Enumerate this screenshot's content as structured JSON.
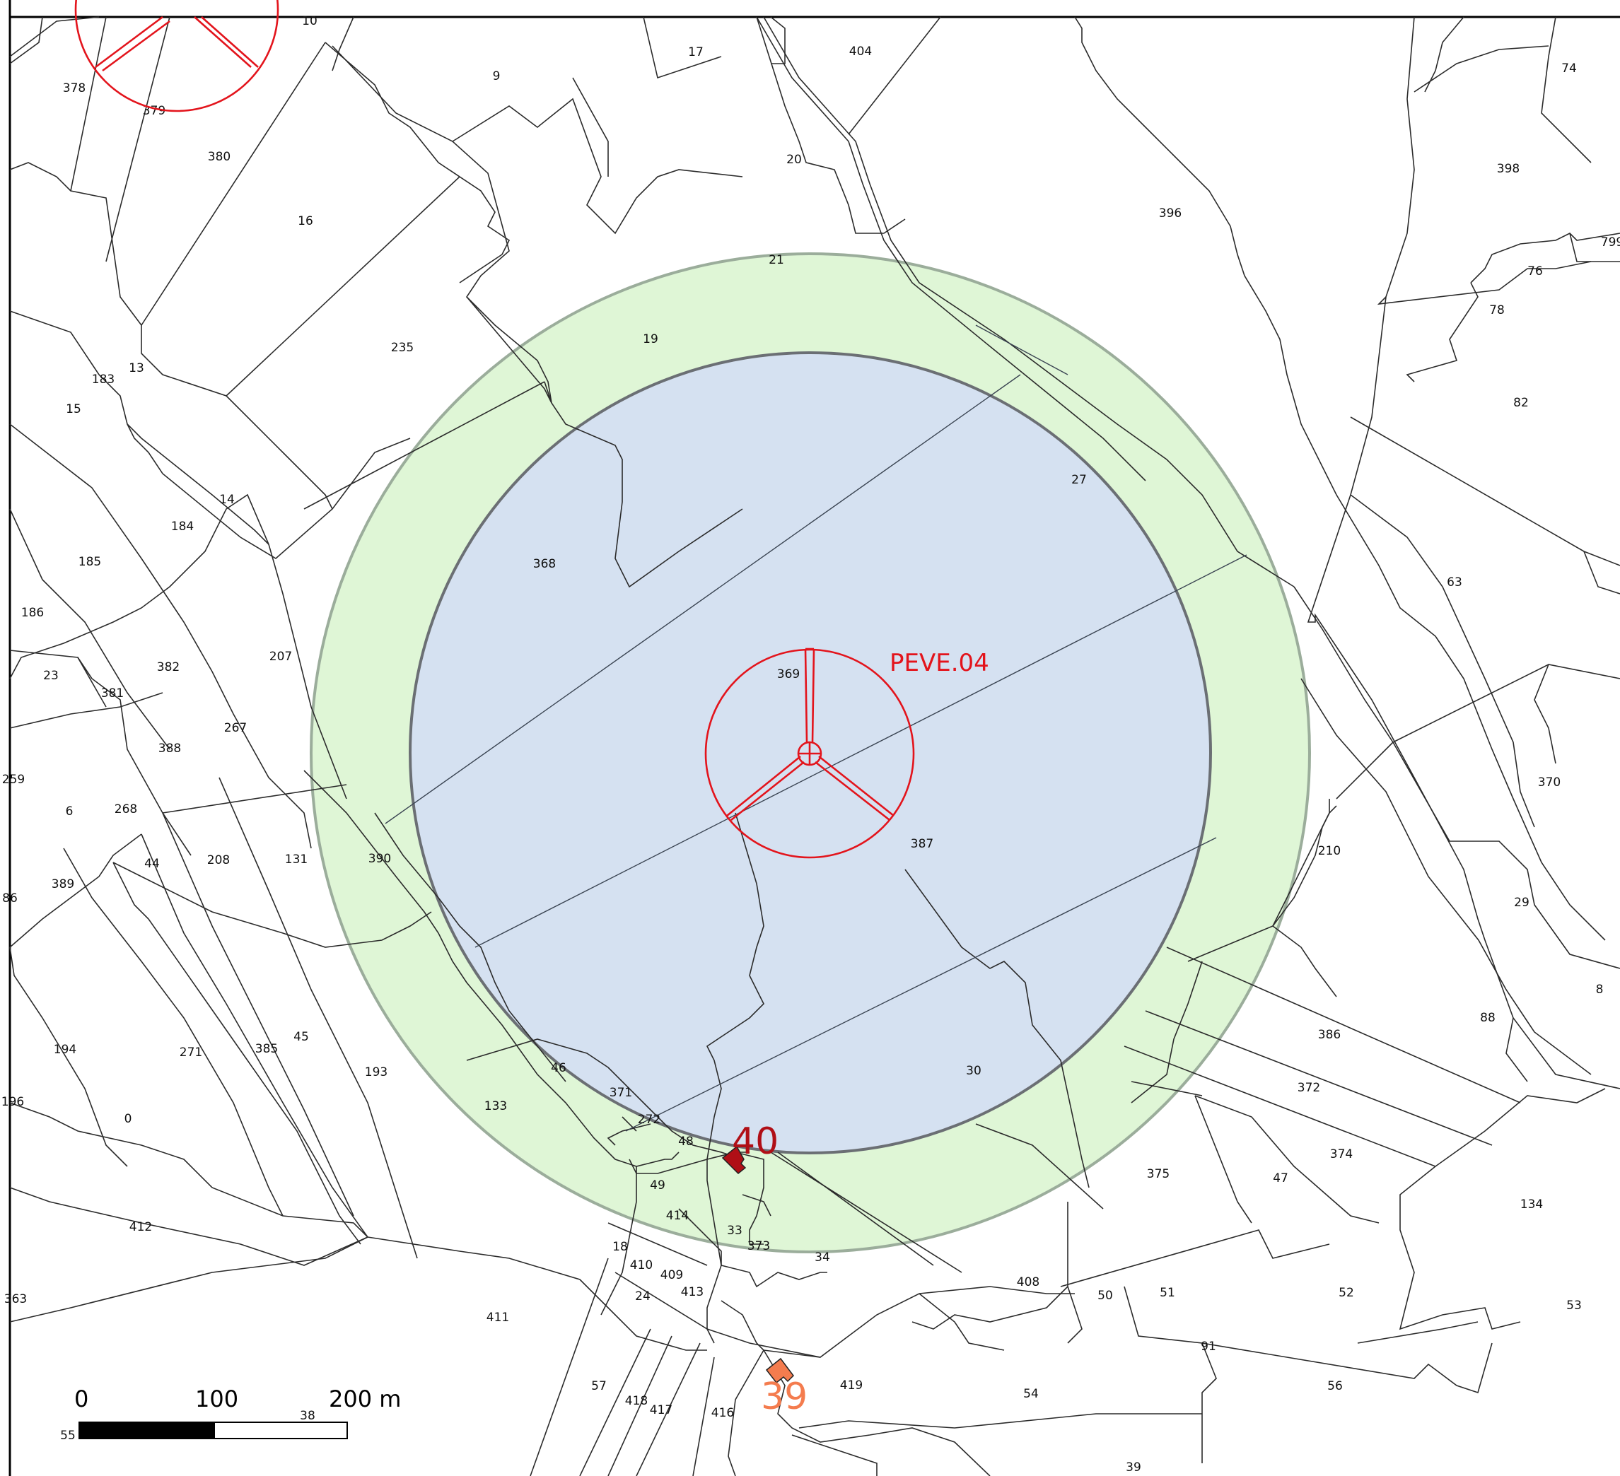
{
  "map": {
    "turbine": {
      "label": "PEVE.04",
      "color": "#e3141c"
    },
    "zones": {
      "outer_fill": "#dff6d6",
      "outer_stroke": "#9bad9b",
      "inner_fill": "#d5e1f1",
      "inner_stroke": "#6b6f74"
    },
    "dwellings": [
      {
        "label": "40",
        "color": "#b00f16"
      },
      {
        "label": "39",
        "color": "#f47c4e"
      }
    ],
    "scale_bar": {
      "labels": [
        "0",
        "100",
        "200 m"
      ]
    },
    "parcels": [
      "10",
      "378",
      "379",
      "9",
      "17",
      "404",
      "74",
      "380",
      "20",
      "398",
      "16",
      "396",
      "21",
      "799",
      "76",
      "235",
      "19",
      "78",
      "13",
      "183",
      "82",
      "15",
      "14",
      "27",
      "184",
      "368",
      "185",
      "63",
      "186",
      "207",
      "382",
      "369",
      "23",
      "381",
      "267",
      "388",
      "387",
      "370",
      "259",
      "6",
      "268",
      "131",
      "390",
      "210",
      "44",
      "208",
      "389",
      "29",
      "86",
      "8",
      "88",
      "45",
      "385",
      "194",
      "271",
      "193",
      "386",
      "46",
      "30",
      "371",
      "372",
      "133",
      "196",
      "0",
      "272",
      "374",
      "48",
      "375",
      "47",
      "134",
      "49",
      "414",
      "412",
      "33",
      "373",
      "34",
      "18",
      "410",
      "409",
      "408",
      "50",
      "51",
      "52",
      "53",
      "24",
      "413",
      "411",
      "363",
      "91",
      "56",
      "57",
      "418",
      "417",
      "416",
      "419",
      "54",
      "55",
      "38",
      "39",
      "13"
    ]
  }
}
